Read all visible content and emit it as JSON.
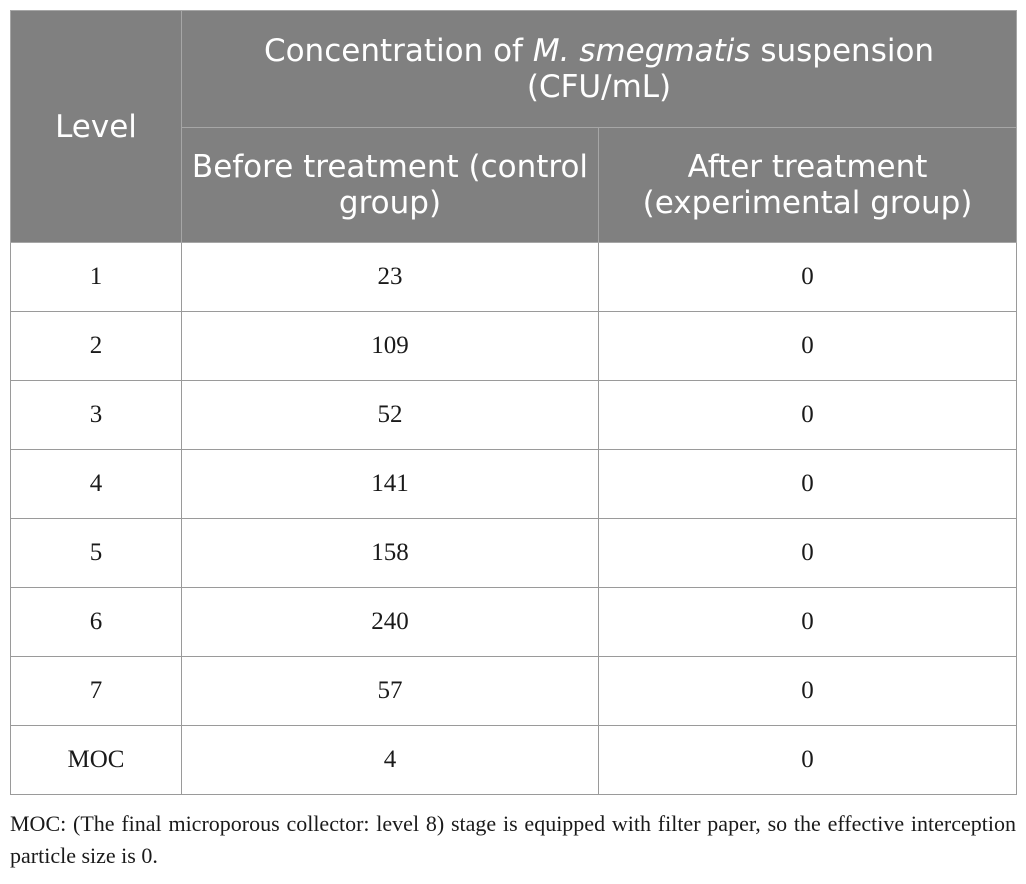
{
  "table": {
    "header": {
      "level_label": "Level",
      "group_prefix": "Concentration of ",
      "group_species": "M. smegmatis",
      "group_suffix": " suspension (CFU/mL)",
      "col_before": "Before treatment (control group)",
      "col_after": "After treatment (experimental group)"
    },
    "rows": [
      {
        "level": "1",
        "before": "23",
        "after": "0"
      },
      {
        "level": "2",
        "before": "109",
        "after": "0"
      },
      {
        "level": "3",
        "before": "52",
        "after": "0"
      },
      {
        "level": "4",
        "before": "141",
        "after": "0"
      },
      {
        "level": "5",
        "before": "158",
        "after": "0"
      },
      {
        "level": "6",
        "before": "240",
        "after": "0"
      },
      {
        "level": "7",
        "before": "57",
        "after": "0"
      },
      {
        "level": "MOC",
        "before": "4",
        "after": "0"
      }
    ]
  },
  "footnote": "MOC: (The final microporous collector: level 8) stage is equipped with filter paper, so the effective interception particle size is 0.",
  "colors": {
    "header_bg": "#808080",
    "header_text": "#ffffff",
    "border": "#9a9a9a"
  }
}
